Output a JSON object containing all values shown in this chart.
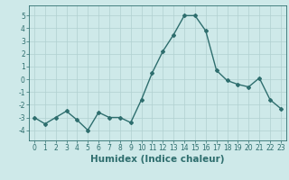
{
  "x": [
    0,
    1,
    2,
    3,
    4,
    5,
    6,
    7,
    8,
    9,
    10,
    11,
    12,
    13,
    14,
    15,
    16,
    17,
    18,
    19,
    20,
    21,
    22,
    23
  ],
  "y": [
    -3.0,
    -3.5,
    -3.0,
    -2.5,
    -3.2,
    -4.0,
    -2.6,
    -3.0,
    -3.0,
    -3.4,
    -1.6,
    0.5,
    2.2,
    3.5,
    5.0,
    5.0,
    3.8,
    0.7,
    -0.1,
    -0.4,
    -0.6,
    0.1,
    -1.6,
    -2.3
  ],
  "line_color": "#2e6e6e",
  "marker": "D",
  "marker_size": 2.0,
  "bg_color": "#cee9e9",
  "grid_color": "#b0d0d0",
  "xlabel": "Humidex (Indice chaleur)",
  "ylim": [
    -4.8,
    5.8
  ],
  "xlim": [
    -0.5,
    23.5
  ],
  "yticks": [
    -4,
    -3,
    -2,
    -1,
    0,
    1,
    2,
    3,
    4,
    5
  ],
  "xticks": [
    0,
    1,
    2,
    3,
    4,
    5,
    6,
    7,
    8,
    9,
    10,
    11,
    12,
    13,
    14,
    15,
    16,
    17,
    18,
    19,
    20,
    21,
    22,
    23
  ],
  "tick_label_fontsize": 5.5,
  "xlabel_fontsize": 7.5,
  "line_width": 1.0
}
